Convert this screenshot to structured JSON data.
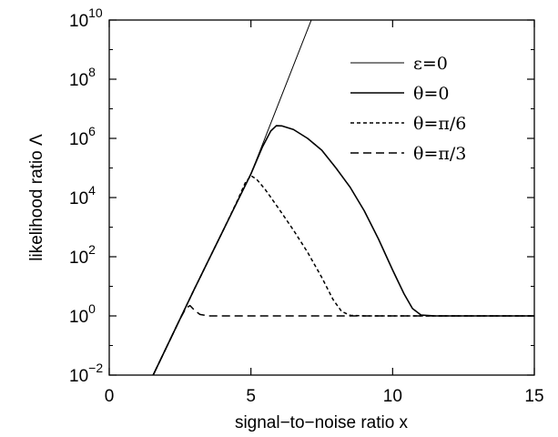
{
  "chart_data": {
    "type": "line",
    "title": "",
    "xlabel": "signal−to−noise ratio x",
    "ylabel": "likelihood ratio Λ",
    "xlim": [
      0,
      15
    ],
    "ylim_log10": [
      -2,
      10
    ],
    "yscale": "log",
    "xticks": [
      0,
      5,
      10,
      15
    ],
    "xtick_labels": [
      "0",
      "5",
      "10",
      "15"
    ],
    "yticks_log10": [
      -2,
      0,
      2,
      4,
      6,
      8,
      10
    ],
    "ytick_labels": [
      {
        "base": "10",
        "exp": "−2"
      },
      {
        "base": "10",
        "exp": "0"
      },
      {
        "base": "10",
        "exp": "2"
      },
      {
        "base": "10",
        "exp": "4"
      },
      {
        "base": "10",
        "exp": "6"
      },
      {
        "base": "10",
        "exp": "8"
      },
      {
        "base": "10",
        "exp": "10"
      }
    ],
    "grid": false,
    "legend_position": "top-right",
    "series": [
      {
        "name": "ε=0",
        "style": "thin-solid",
        "points_log10": [
          [
            1.55,
            -2.0
          ],
          [
            3.0,
            0.9
          ],
          [
            5.0,
            4.8
          ],
          [
            7.13,
            10.0
          ]
        ]
      },
      {
        "name": "θ=0",
        "style": "solid",
        "points_log10": [
          [
            1.55,
            -2.0
          ],
          [
            3.0,
            0.9
          ],
          [
            4.0,
            2.85
          ],
          [
            5.0,
            4.8
          ],
          [
            5.4,
            5.7
          ],
          [
            5.7,
            6.25
          ],
          [
            5.9,
            6.43
          ],
          [
            6.1,
            6.42
          ],
          [
            6.5,
            6.3
          ],
          [
            7.0,
            6.0
          ],
          [
            7.5,
            5.6
          ],
          [
            8.0,
            5.0
          ],
          [
            8.5,
            4.35
          ],
          [
            9.0,
            3.55
          ],
          [
            9.5,
            2.6
          ],
          [
            10.0,
            1.55
          ],
          [
            10.4,
            0.75
          ],
          [
            10.7,
            0.25
          ],
          [
            11.0,
            0.03
          ],
          [
            11.5,
            0.0
          ],
          [
            15.0,
            0.0
          ]
        ]
      },
      {
        "name": "θ=π/6",
        "style": "short-dash",
        "points_log10": [
          [
            1.55,
            -2.0
          ],
          [
            3.0,
            0.9
          ],
          [
            4.0,
            2.85
          ],
          [
            4.5,
            3.85
          ],
          [
            4.8,
            4.5
          ],
          [
            5.0,
            4.74
          ],
          [
            5.2,
            4.62
          ],
          [
            5.5,
            4.28
          ],
          [
            6.0,
            3.6
          ],
          [
            6.5,
            2.9
          ],
          [
            7.0,
            2.15
          ],
          [
            7.5,
            1.3
          ],
          [
            7.9,
            0.55
          ],
          [
            8.2,
            0.15
          ],
          [
            8.5,
            0.02
          ],
          [
            9.0,
            0.0
          ],
          [
            15.0,
            0.0
          ]
        ]
      },
      {
        "name": "θ=π/3",
        "style": "long-dash",
        "points_log10": [
          [
            1.55,
            -2.0
          ],
          [
            2.0,
            -1.1
          ],
          [
            2.5,
            -0.1
          ],
          [
            2.7,
            0.25
          ],
          [
            2.85,
            0.35
          ],
          [
            3.0,
            0.2
          ],
          [
            3.2,
            0.05
          ],
          [
            3.5,
            0.0
          ],
          [
            15.0,
            0.0
          ]
        ]
      }
    ]
  }
}
